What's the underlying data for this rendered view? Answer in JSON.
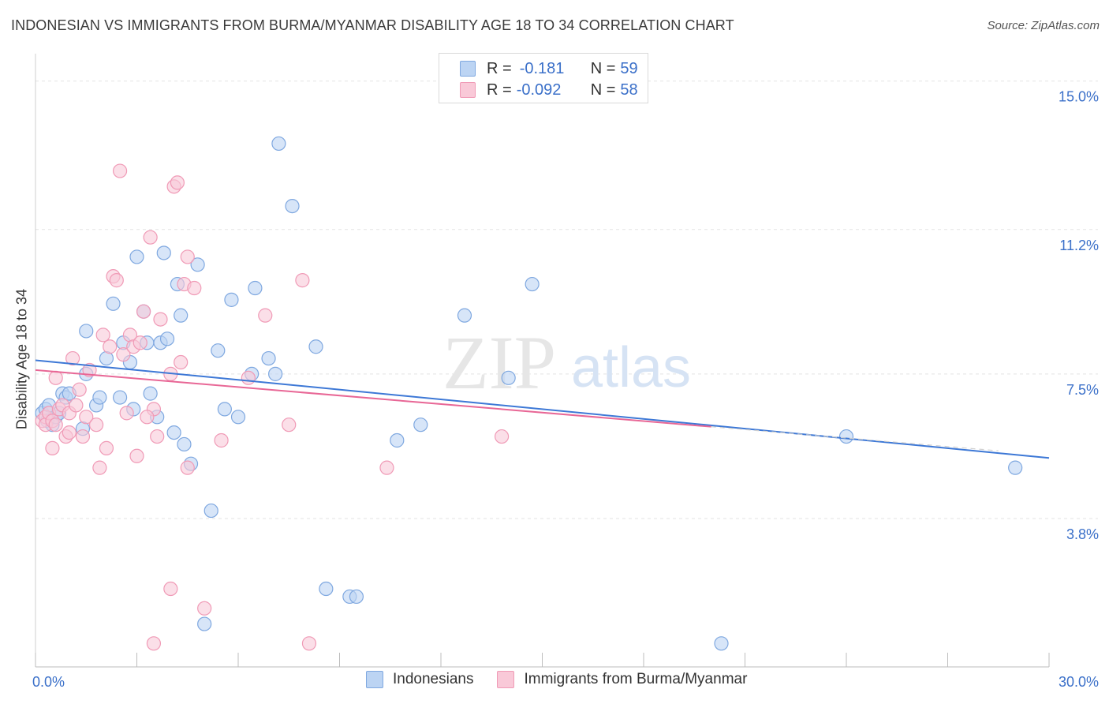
{
  "title": "INDONESIAN VS IMMIGRANTS FROM BURMA/MYANMAR DISABILITY AGE 18 TO 34 CORRELATION CHART",
  "source": "Source: ZipAtlas.com",
  "watermark": {
    "zip": "ZIP",
    "atlas": "atlas"
  },
  "legend_top": {
    "rows": [
      {
        "r_label": "R =",
        "r_value": "-0.181",
        "n_label": "N =",
        "n_value": "59"
      },
      {
        "r_label": "R =",
        "r_value": "-0.092",
        "n_label": "N =",
        "n_value": "58"
      }
    ]
  },
  "legend_bottom": {
    "series1": "Indonesians",
    "series2": "Immigrants from Burma/Myanmar"
  },
  "colors": {
    "blue_fill": "#bcd4f3",
    "blue_stroke": "#7fa8e0",
    "blue_line": "#3d78d6",
    "pink_fill": "#f9c9d8",
    "pink_stroke": "#f09ab6",
    "pink_line": "#e86796",
    "tick_text": "#3b70c9",
    "grid": "#e3e3e3"
  },
  "chart_data": {
    "type": "scatter",
    "title": "INDONESIAN VS IMMIGRANTS FROM BURMA/MYANMAR DISABILITY AGE 18 TO 34 CORRELATION CHART",
    "xlabel": "",
    "ylabel": "Disability Age 18 to 34",
    "xlim": [
      0,
      30
    ],
    "ylim": [
      0,
      15.5
    ],
    "x_tick_labels": [
      "0.0%",
      "30.0%"
    ],
    "y_ticks": [
      3.8,
      7.5,
      11.2,
      15.0
    ],
    "y_tick_labels": [
      "3.8%",
      "7.5%",
      "11.2%",
      "15.0%"
    ],
    "series": [
      {
        "name": "Indonesians",
        "r": -0.181,
        "n": 59,
        "trend": {
          "x0": 0,
          "y0": 7.85,
          "x1": 30,
          "y1": 5.35
        },
        "points": [
          [
            0.2,
            6.5
          ],
          [
            0.3,
            6.6
          ],
          [
            0.35,
            6.3
          ],
          [
            0.4,
            6.7
          ],
          [
            0.5,
            6.2
          ],
          [
            0.6,
            6.4
          ],
          [
            0.7,
            6.5
          ],
          [
            0.8,
            7.0
          ],
          [
            0.9,
            6.9
          ],
          [
            1.0,
            7.0
          ],
          [
            1.4,
            6.1
          ],
          [
            1.5,
            8.6
          ],
          [
            1.5,
            7.5
          ],
          [
            1.8,
            6.7
          ],
          [
            1.9,
            6.9
          ],
          [
            2.1,
            7.9
          ],
          [
            2.3,
            9.3
          ],
          [
            2.5,
            6.9
          ],
          [
            2.6,
            8.3
          ],
          [
            2.8,
            7.8
          ],
          [
            2.9,
            6.6
          ],
          [
            3.0,
            10.5
          ],
          [
            3.2,
            9.1
          ],
          [
            3.3,
            8.3
          ],
          [
            3.4,
            7.0
          ],
          [
            3.6,
            6.4
          ],
          [
            3.7,
            8.3
          ],
          [
            3.8,
            10.6
          ],
          [
            3.9,
            8.4
          ],
          [
            4.1,
            6.0
          ],
          [
            4.2,
            9.8
          ],
          [
            4.3,
            9.0
          ],
          [
            4.4,
            5.7
          ],
          [
            4.6,
            5.2
          ],
          [
            4.8,
            10.3
          ],
          [
            5.2,
            4.0
          ],
          [
            5.4,
            8.1
          ],
          [
            5.6,
            6.6
          ],
          [
            5.8,
            9.4
          ],
          [
            6.0,
            6.4
          ],
          [
            6.4,
            7.5
          ],
          [
            6.5,
            9.7
          ],
          [
            6.9,
            7.9
          ],
          [
            7.1,
            7.5
          ],
          [
            7.2,
            13.4
          ],
          [
            7.6,
            11.8
          ],
          [
            8.3,
            8.2
          ],
          [
            8.6,
            2.0
          ],
          [
            9.3,
            1.8
          ],
          [
            9.5,
            1.8
          ],
          [
            10.7,
            5.8
          ],
          [
            11.4,
            6.2
          ],
          [
            12.7,
            9.0
          ],
          [
            14.0,
            7.4
          ],
          [
            14.7,
            9.8
          ],
          [
            20.3,
            0.6
          ],
          [
            5.0,
            1.1
          ],
          [
            24.0,
            5.9
          ],
          [
            29.0,
            5.1
          ]
        ]
      },
      {
        "name": "Immigrants from Burma/Myanmar",
        "r": -0.092,
        "n": 58,
        "trend": {
          "x0": 0,
          "y0": 7.6,
          "x1": 20.0,
          "y1": 6.15
        },
        "points": [
          [
            0.2,
            6.3
          ],
          [
            0.3,
            6.4
          ],
          [
            0.3,
            6.2
          ],
          [
            0.4,
            6.5
          ],
          [
            0.5,
            6.3
          ],
          [
            0.5,
            5.6
          ],
          [
            0.6,
            6.2
          ],
          [
            0.6,
            7.4
          ],
          [
            0.7,
            6.6
          ],
          [
            0.8,
            6.7
          ],
          [
            0.9,
            5.9
          ],
          [
            1.0,
            6.0
          ],
          [
            1.0,
            6.5
          ],
          [
            1.1,
            7.9
          ],
          [
            1.2,
            6.7
          ],
          [
            1.3,
            7.1
          ],
          [
            1.4,
            5.9
          ],
          [
            1.5,
            6.4
          ],
          [
            1.6,
            7.6
          ],
          [
            1.8,
            6.2
          ],
          [
            1.9,
            5.1
          ],
          [
            2.0,
            8.5
          ],
          [
            2.1,
            5.6
          ],
          [
            2.2,
            8.2
          ],
          [
            2.3,
            10.0
          ],
          [
            2.4,
            9.9
          ],
          [
            2.5,
            12.7
          ],
          [
            2.6,
            8.0
          ],
          [
            2.7,
            6.5
          ],
          [
            2.8,
            8.5
          ],
          [
            2.9,
            8.2
          ],
          [
            3.0,
            5.4
          ],
          [
            3.1,
            8.3
          ],
          [
            3.2,
            9.1
          ],
          [
            3.4,
            11.0
          ],
          [
            3.5,
            6.6
          ],
          [
            3.6,
            5.9
          ],
          [
            3.7,
            8.9
          ],
          [
            4.0,
            7.5
          ],
          [
            4.1,
            12.3
          ],
          [
            4.2,
            12.4
          ],
          [
            4.4,
            9.8
          ],
          [
            4.5,
            10.5
          ],
          [
            4.5,
            5.1
          ],
          [
            4.7,
            9.7
          ],
          [
            5.0,
            1.5
          ],
          [
            5.5,
            5.8
          ],
          [
            6.3,
            7.4
          ],
          [
            6.8,
            9.0
          ],
          [
            7.5,
            6.2
          ],
          [
            7.9,
            9.9
          ],
          [
            8.1,
            0.6
          ],
          [
            10.4,
            5.1
          ],
          [
            13.8,
            5.9
          ],
          [
            4.0,
            2.0
          ],
          [
            3.5,
            0.6
          ],
          [
            4.3,
            7.8
          ],
          [
            3.3,
            6.4
          ]
        ]
      }
    ]
  }
}
